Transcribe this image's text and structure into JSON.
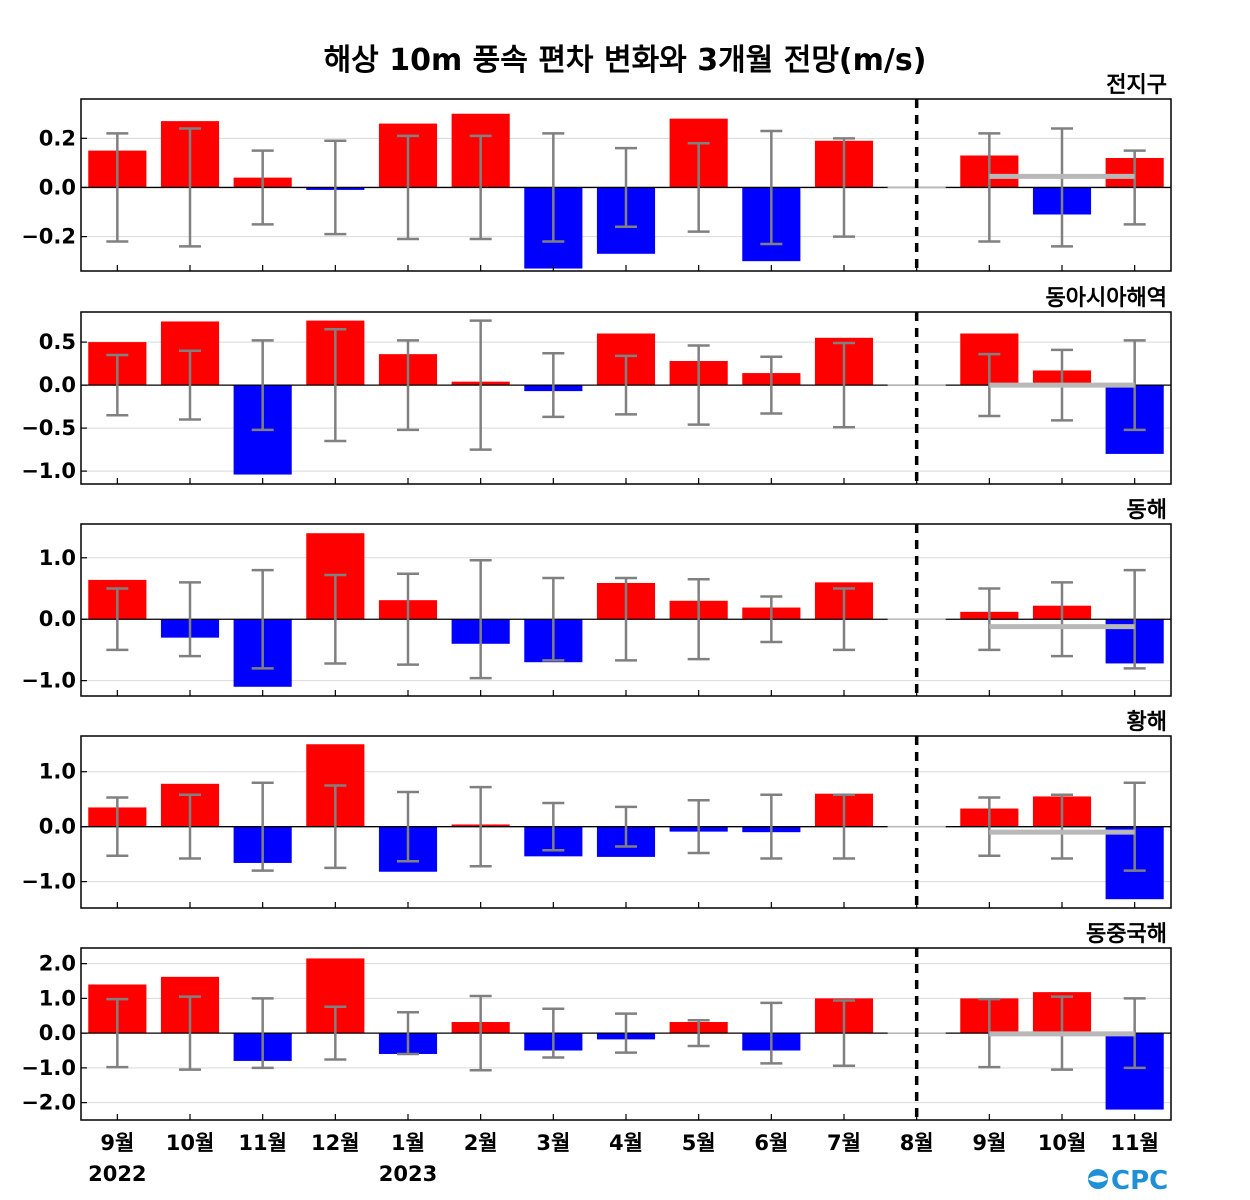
{
  "title": "해상 10m 풍속 편차 변화와 3개월 전망(m/s)",
  "logo_text": "CPC",
  "colors": {
    "positive": "#ff0000",
    "negative": "#0000ff",
    "errorbar": "#808080",
    "outlook_line": "#b8b8b8",
    "grid": "#d9d9d9",
    "logo": "#1f8fd6"
  },
  "x_tick_labels": [
    "9월",
    "10월",
    "11월",
    "12월",
    "1월",
    "2월",
    "3월",
    "4월",
    "5월",
    "6월",
    "7월",
    "8월",
    "9월",
    "10월",
    "11월"
  ],
  "year_labels": [
    {
      "index": 0,
      "label": "2022"
    },
    {
      "index": 4,
      "label": "2023"
    }
  ],
  "chart_data": [
    {
      "type": "bar",
      "name": "전지구",
      "ylim": [
        -0.34,
        0.36
      ],
      "yticks": [
        0.2,
        0.0,
        -0.2
      ],
      "ytick_labels": [
        "0.2",
        "0.0",
        "−0.2"
      ],
      "values": [
        0.15,
        0.27,
        0.04,
        -0.01,
        0.26,
        0.3,
        -0.33,
        -0.27,
        0.28,
        -0.3,
        0.19,
        0.0,
        0.13,
        -0.11,
        0.12
      ],
      "error_bars": [
        0.22,
        0.24,
        0.15,
        0.19,
        0.21,
        0.21,
        0.22,
        0.16,
        0.18,
        0.23,
        0.2,
        null,
        0.22,
        0.24,
        0.15
      ],
      "outlook": 0.045,
      "dashed_divider_after": "8월"
    },
    {
      "type": "bar",
      "name": "동아시아해역",
      "ylim": [
        -1.15,
        0.85
      ],
      "yticks": [
        0.5,
        0.0,
        -0.5,
        -1.0
      ],
      "ytick_labels": [
        "0.5",
        "0.0",
        "−0.5",
        "−1.0"
      ],
      "values": [
        0.5,
        0.74,
        -1.04,
        0.75,
        0.36,
        0.04,
        -0.07,
        0.6,
        0.28,
        0.14,
        0.55,
        0.0,
        0.6,
        0.17,
        -0.8
      ],
      "error_bars": [
        0.35,
        0.4,
        0.52,
        0.65,
        0.52,
        0.75,
        0.37,
        0.34,
        0.46,
        0.33,
        0.49,
        null,
        0.36,
        0.41,
        0.52
      ],
      "outlook": 0.0,
      "dashed_divider_after": "8월"
    },
    {
      "type": "bar",
      "name": "동해",
      "ylim": [
        -1.25,
        1.55
      ],
      "yticks": [
        1.0,
        0.0,
        -1.0
      ],
      "ytick_labels": [
        "1.0",
        "0.0",
        "−1.0"
      ],
      "values": [
        0.64,
        -0.3,
        -1.1,
        1.4,
        0.31,
        -0.4,
        -0.7,
        0.59,
        0.3,
        0.19,
        0.6,
        0.0,
        0.12,
        0.22,
        -0.72
      ],
      "error_bars": [
        0.5,
        0.6,
        0.8,
        0.72,
        0.74,
        0.96,
        0.67,
        0.67,
        0.65,
        0.37,
        0.5,
        null,
        0.5,
        0.6,
        0.8
      ],
      "outlook": -0.12,
      "dashed_divider_after": "8월"
    },
    {
      "type": "bar",
      "name": "황해",
      "ylim": [
        -1.48,
        1.65
      ],
      "yticks": [
        1.0,
        0.0,
        -1.0
      ],
      "ytick_labels": [
        "1.0",
        "0.0",
        "−1.0"
      ],
      "values": [
        0.35,
        0.78,
        -0.66,
        1.5,
        -0.82,
        0.04,
        -0.54,
        -0.55,
        -0.09,
        -0.1,
        0.6,
        0.0,
        0.33,
        0.55,
        -1.32
      ],
      "error_bars": [
        0.53,
        0.58,
        0.8,
        0.75,
        0.63,
        0.72,
        0.43,
        0.36,
        0.48,
        0.58,
        0.58,
        null,
        0.53,
        0.58,
        0.8
      ],
      "outlook": -0.1,
      "dashed_divider_after": "8월"
    },
    {
      "type": "bar",
      "name": "동중국해",
      "ylim": [
        -2.5,
        2.45
      ],
      "yticks": [
        2.0,
        1.0,
        0.0,
        -1.0,
        -2.0
      ],
      "ytick_labels": [
        "2.0",
        "1.0",
        "0.0",
        "−1.0",
        "−2.0"
      ],
      "values": [
        1.4,
        1.62,
        -0.8,
        2.15,
        -0.6,
        0.32,
        -0.5,
        -0.18,
        0.32,
        -0.5,
        1.0,
        0.0,
        1.0,
        1.18,
        -2.2
      ],
      "error_bars": [
        0.98,
        1.05,
        1.0,
        0.76,
        0.6,
        1.07,
        0.7,
        0.56,
        0.37,
        0.87,
        0.94,
        null,
        0.98,
        1.05,
        1.0
      ],
      "outlook": -0.02,
      "dashed_divider_after": "8월"
    }
  ]
}
